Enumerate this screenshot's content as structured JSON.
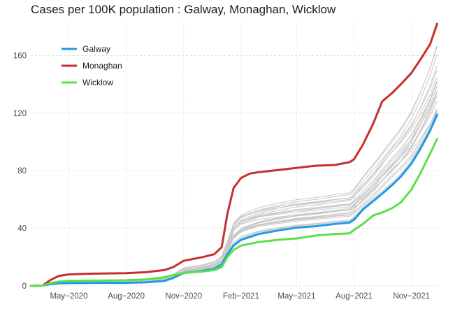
{
  "chart_data": {
    "type": "line",
    "title": "Cases per 100K population : Galway, Monaghan, Wicklow",
    "xlabel": "",
    "ylabel": "",
    "x_ticks": [
      "May−2020",
      "Aug−2020",
      "Nov−2020",
      "Feb−2021",
      "May−2021",
      "Aug−2021",
      "Nov−2021"
    ],
    "x_tick_dates": [
      "2020-05-01",
      "2020-08-01",
      "2020-11-01",
      "2021-02-01",
      "2021-05-01",
      "2021-08-01",
      "2021-11-01"
    ],
    "xlim": [
      "2020-03-01",
      "2021-12-15"
    ],
    "y_ticks": [
      0,
      40,
      80,
      120,
      160
    ],
    "ylim": [
      0,
      184
    ],
    "grid": true,
    "legend_position": "top-left",
    "series": [
      {
        "name": "Galway",
        "color": "#1e9be6",
        "dates": [
          "2020-03-01",
          "2020-03-20",
          "2020-04-01",
          "2020-04-15",
          "2020-05-01",
          "2020-06-01",
          "2020-07-01",
          "2020-08-01",
          "2020-09-01",
          "2020-10-01",
          "2020-10-15",
          "2020-11-01",
          "2020-12-01",
          "2020-12-20",
          "2021-01-01",
          "2021-01-10",
          "2021-01-20",
          "2021-02-01",
          "2021-03-01",
          "2021-04-01",
          "2021-05-01",
          "2021-06-01",
          "2021-07-01",
          "2021-07-25",
          "2021-08-01",
          "2021-08-15",
          "2021-09-01",
          "2021-09-15",
          "2021-10-01",
          "2021-10-15",
          "2021-11-01",
          "2021-11-15",
          "2021-12-01",
          "2021-12-12"
        ],
        "values": [
          0,
          0.3,
          1.2,
          1.8,
          2.0,
          2.1,
          2.2,
          2.2,
          2.5,
          3.5,
          5.5,
          9,
          10.5,
          12,
          15,
          22,
          28,
          32,
          36,
          38.5,
          40.5,
          41.5,
          43,
          44,
          46,
          53,
          59,
          64,
          70,
          76,
          85,
          95,
          108,
          119
        ]
      },
      {
        "name": "Monaghan",
        "color": "#c62f2f",
        "dates": [
          "2020-03-01",
          "2020-03-20",
          "2020-04-01",
          "2020-04-15",
          "2020-05-01",
          "2020-06-01",
          "2020-07-01",
          "2020-08-01",
          "2020-09-01",
          "2020-10-01",
          "2020-10-15",
          "2020-11-01",
          "2020-12-01",
          "2020-12-20",
          "2021-01-01",
          "2021-01-10",
          "2021-01-20",
          "2021-02-01",
          "2021-02-15",
          "2021-03-01",
          "2021-04-01",
          "2021-05-01",
          "2021-06-01",
          "2021-07-01",
          "2021-07-25",
          "2021-08-01",
          "2021-08-15",
          "2021-09-01",
          "2021-09-15",
          "2021-10-01",
          "2021-10-15",
          "2021-11-01",
          "2021-11-15",
          "2021-12-01",
          "2021-12-12"
        ],
        "values": [
          0,
          0.3,
          4,
          7,
          8,
          8.5,
          8.7,
          8.9,
          9.5,
          11,
          13,
          17.5,
          20,
          22,
          27,
          50,
          68,
          75,
          78,
          79,
          80.5,
          82,
          83.5,
          84,
          86,
          88,
          98,
          113,
          128,
          134,
          140,
          148,
          157,
          168,
          182
        ]
      },
      {
        "name": "Wicklow",
        "color": "#5ce04a",
        "dates": [
          "2020-03-01",
          "2020-03-20",
          "2020-04-01",
          "2020-04-15",
          "2020-05-01",
          "2020-06-01",
          "2020-07-01",
          "2020-08-01",
          "2020-09-01",
          "2020-10-01",
          "2020-10-15",
          "2020-11-01",
          "2020-12-01",
          "2020-12-20",
          "2021-01-01",
          "2021-01-10",
          "2021-01-20",
          "2021-02-01",
          "2021-03-01",
          "2021-04-01",
          "2021-05-01",
          "2021-06-01",
          "2021-07-01",
          "2021-07-25",
          "2021-08-01",
          "2021-08-15",
          "2021-09-01",
          "2021-09-15",
          "2021-10-01",
          "2021-10-15",
          "2021-11-01",
          "2021-11-15",
          "2021-12-01",
          "2021-12-12"
        ],
        "values": [
          0,
          0.3,
          2,
          3,
          3.5,
          3.7,
          3.8,
          4.0,
          4.5,
          6,
          7.5,
          9,
          10,
          11,
          13,
          20,
          25,
          28,
          30.5,
          32,
          33,
          35,
          36,
          36.5,
          39,
          43,
          49,
          51,
          54,
          58,
          67,
          78,
          92,
          102
        ]
      }
    ],
    "background_series_count": 23,
    "background_color": "#c8c8c8"
  }
}
